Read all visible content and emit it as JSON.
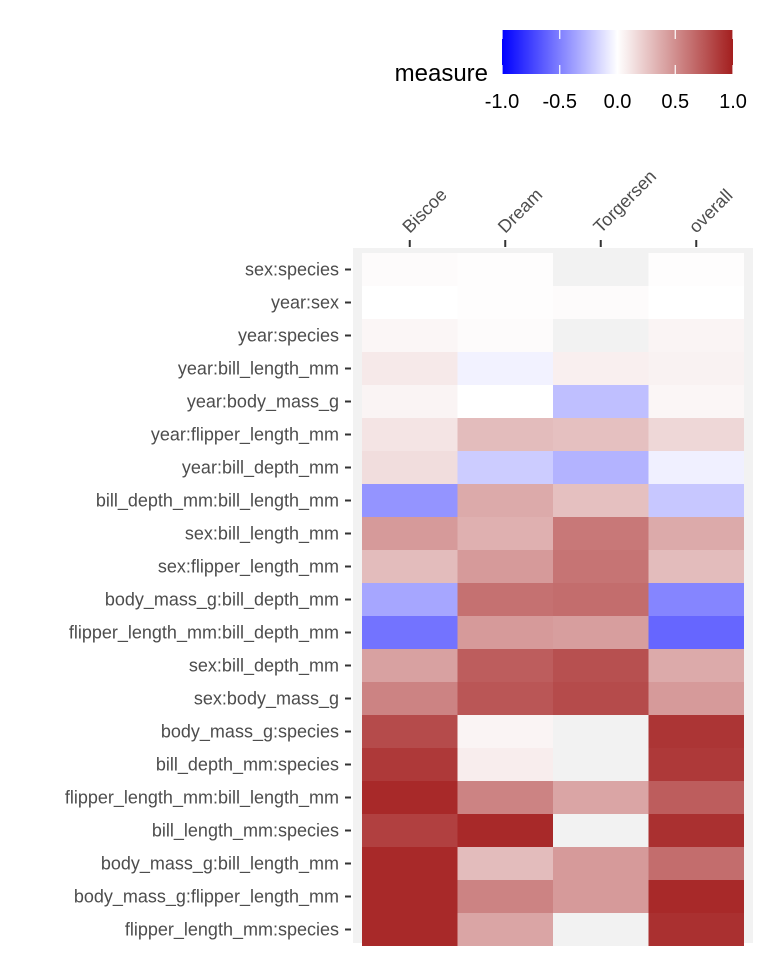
{
  "chart_data": {
    "type": "heatmap",
    "columns": [
      "Biscoe",
      "Dream",
      "Torgersen",
      "overall"
    ],
    "rows": [
      "sex:species",
      "year:sex",
      "year:species",
      "year:bill_length_mm",
      "year:body_mass_g",
      "year:flipper_length_mm",
      "year:bill_depth_mm",
      "bill_depth_mm:bill_length_mm",
      "sex:bill_length_mm",
      "sex:flipper_length_mm",
      "body_mass_g:bill_depth_mm",
      "flipper_length_mm:bill_depth_mm",
      "sex:bill_depth_mm",
      "sex:body_mass_g",
      "body_mass_g:species",
      "bill_depth_mm:species",
      "flipper_length_mm:bill_length_mm",
      "bill_length_mm:species",
      "body_mass_g:bill_length_mm",
      "body_mass_g:flipper_length_mm",
      "flipper_length_mm:species"
    ],
    "values": [
      [
        0.02,
        0.01,
        null,
        0.01
      ],
      [
        0.0,
        0.01,
        0.02,
        0.0
      ],
      [
        0.04,
        0.02,
        null,
        0.05
      ],
      [
        0.1,
        -0.05,
        0.07,
        0.06
      ],
      [
        0.05,
        0.0,
        -0.25,
        0.04
      ],
      [
        0.12,
        0.3,
        0.28,
        0.18
      ],
      [
        0.15,
        -0.2,
        -0.3,
        -0.06
      ],
      [
        -0.42,
        0.38,
        0.28,
        -0.22
      ],
      [
        0.45,
        0.35,
        0.6,
        0.38
      ],
      [
        0.3,
        0.45,
        0.62,
        0.3
      ],
      [
        -0.35,
        0.63,
        0.65,
        -0.48
      ],
      [
        -0.55,
        0.45,
        0.43,
        -0.6
      ],
      [
        0.42,
        0.72,
        0.78,
        0.38
      ],
      [
        0.55,
        0.75,
        0.8,
        0.45
      ],
      [
        0.8,
        0.05,
        null,
        0.9
      ],
      [
        0.88,
        0.08,
        null,
        0.88
      ],
      [
        0.95,
        0.55,
        0.4,
        0.72
      ],
      [
        0.85,
        0.95,
        null,
        0.92
      ],
      [
        0.95,
        0.3,
        0.45,
        0.65
      ],
      [
        0.95,
        0.55,
        0.45,
        0.95
      ],
      [
        0.95,
        0.4,
        null,
        0.92
      ]
    ],
    "na_color": "#f2f2f2",
    "legend": {
      "title": "measure",
      "position": "top",
      "ticks": [
        "-1.0",
        "-0.5",
        "0.0",
        "0.5",
        "1.0"
      ],
      "range": [
        -1,
        1
      ]
    },
    "colors": {
      "low": "#0000ff",
      "mid": "#ffffff",
      "high": "#a31e1e"
    }
  }
}
